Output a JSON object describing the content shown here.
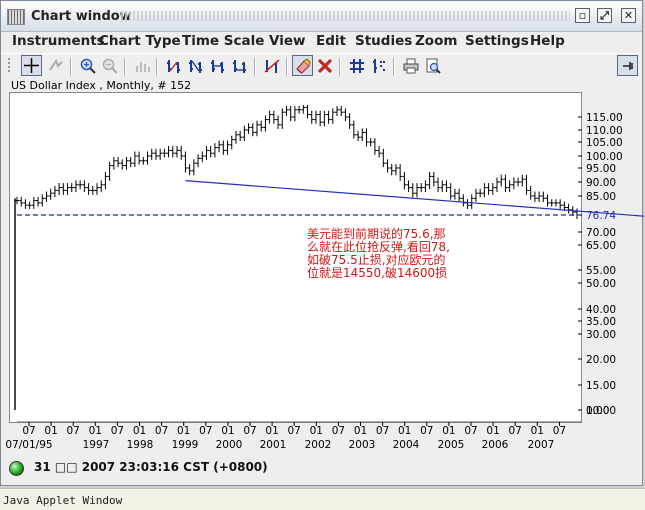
{
  "window": {
    "title": "Chart window"
  },
  "title_buttons": {
    "restore": "▫",
    "maximize": "⤢",
    "close": "✕"
  },
  "menu": [
    "Instruments",
    "Chart Type",
    "Time Scale",
    "View",
    "Edit",
    "Studies",
    "Zoom",
    "Settings",
    "Help"
  ],
  "toolbar_icons": [
    "crosshair-icon",
    "pan-icon",
    "zoom-in-icon",
    "zoom-out-icon",
    "bar-style-icon",
    "chart-type-1-icon",
    "chart-type-2-icon",
    "chart-type-3-icon",
    "chart-type-4-icon",
    "draw-trendline-icon",
    "erase-icon",
    "delete-icon",
    "grid-icon",
    "indicator-icon",
    "print-icon",
    "print-preview-icon",
    "detach-icon"
  ],
  "chart": {
    "header": "US Dollar Index , Monthly, # 152"
  },
  "annotation": [
    "美元能到前期说的75.6,那",
    "么就在此位抢反弹,看回78,",
    "如破75.5止损,对应欧元的",
    "位就是14550,破14600损"
  ],
  "status": {
    "text": "31 □□ 2007 23:03:16  CST (+0800)"
  },
  "applet": {
    "text": "Java Applet Window"
  },
  "chart_data": {
    "type": "bar",
    "y_ticks": [
      "115.00",
      "110.00",
      "105.00",
      "100.00",
      "95.00",
      "90.00",
      "85.00",
      "76.74",
      "70.00",
      "65.00",
      "55.00",
      "50.00",
      "40.00",
      "35.00",
      "30.00",
      "20.00",
      "15.00",
      "10.00",
      "0.00"
    ],
    "y_tick_values": [
      115,
      110,
      105,
      100,
      95,
      90,
      85,
      76.74,
      70,
      65,
      55,
      50,
      40,
      35,
      30,
      20,
      15,
      10,
      0
    ],
    "ylim": [
      0,
      120
    ],
    "last_price": 76.74,
    "x_month_labels": [
      "07",
      "01",
      "07",
      "01",
      "07",
      "01",
      "07",
      "01",
      "07",
      "01",
      "07",
      "01",
      "07",
      "01",
      "07",
      "01",
      "07",
      "01",
      "07",
      "01",
      "07",
      "01",
      "07",
      "01",
      "07"
    ],
    "x_year_labels": [
      "07/01/95",
      "1997",
      "1998",
      "1999",
      "2000",
      "2001",
      "2002",
      "2003",
      "2004",
      "2005",
      "2006",
      "2007"
    ],
    "series_monthly_close": [
      83,
      82,
      81,
      81,
      83,
      82,
      84,
      85,
      86,
      87,
      88,
      87,
      88,
      88,
      89,
      89,
      88,
      87,
      87,
      88,
      89,
      92,
      96,
      98,
      97,
      96,
      98,
      97,
      100,
      98,
      98,
      100,
      101,
      100,
      101,
      101,
      102,
      101,
      102,
      100,
      95,
      94,
      97,
      99,
      100,
      102,
      101,
      103,
      104,
      102,
      104,
      106,
      108,
      107,
      110,
      111,
      109,
      112,
      111,
      114,
      116,
      114,
      112,
      117,
      118,
      115,
      118,
      118,
      119,
      116,
      114,
      116,
      113,
      116,
      114,
      117,
      118,
      117,
      115,
      112,
      108,
      107,
      109,
      105,
      105,
      102,
      101,
      97,
      95,
      94,
      95,
      92,
      89,
      88,
      86,
      88,
      88,
      89,
      92,
      90,
      88,
      89,
      88,
      85,
      86,
      84,
      82,
      81,
      84,
      86,
      86,
      88,
      87,
      88,
      90,
      91,
      88,
      89,
      90,
      90,
      91,
      87,
      85,
      84,
      85,
      84,
      82,
      82,
      82,
      81,
      80,
      79,
      78,
      76.74
    ],
    "trendline": [
      {
        "x_index": 40,
        "y": 90.5
      },
      {
        "x_index": 151,
        "y": 76.0
      }
    ]
  }
}
